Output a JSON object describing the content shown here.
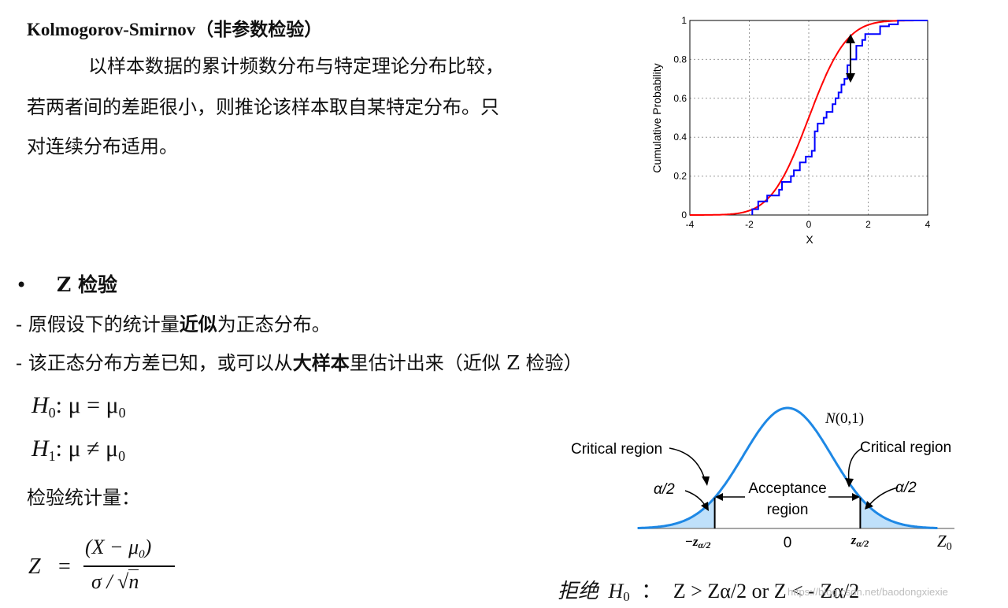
{
  "ks": {
    "title": "Kolmogorov-Smirnov（非参数检验）",
    "line1": "以样本数据的累计频数分布与特定理论分布比较，",
    "line2": "若两者间的差距很小，则推论该样本取自某特定分布。只",
    "line3": "对连续分布适用。"
  },
  "ks_chart": {
    "ylabel": "Cumulative Probability",
    "xlabel": "X",
    "x_ticks": [
      "-4",
      "-2",
      "0",
      "2",
      "4"
    ],
    "y_ticks": [
      "0",
      "0.2",
      "0.4",
      "0.6",
      "0.8",
      "1"
    ]
  },
  "chart_data": [
    {
      "type": "line",
      "title": "",
      "xlabel": "X",
      "ylabel": "Cumulative Probability",
      "xlim": [
        -4,
        4
      ],
      "ylim": [
        0,
        1
      ],
      "grid": true,
      "series": [
        {
          "name": "",
          "color": "#ff0000",
          "kind": "normal-cdf",
          "x": [
            -4,
            -3,
            -2.5,
            -2,
            -1.5,
            -1,
            -0.5,
            0,
            0.5,
            1,
            1.5,
            2,
            2.5,
            3,
            4
          ],
          "y": [
            0.0,
            0.001,
            0.006,
            0.023,
            0.067,
            0.159,
            0.309,
            0.5,
            0.691,
            0.841,
            0.933,
            0.977,
            0.994,
            0.999,
            1.0
          ]
        },
        {
          "name": "",
          "color": "#0000ff",
          "kind": "empirical-cdf-step",
          "x": [
            -1.9,
            -1.7,
            -1.4,
            -1.0,
            -0.9,
            -0.6,
            -0.5,
            -0.3,
            -0.1,
            0.1,
            0.2,
            0.3,
            0.5,
            0.6,
            0.8,
            0.9,
            1.0,
            1.1,
            1.2,
            1.3,
            1.4,
            1.6,
            1.8,
            1.9,
            2.4,
            2.7,
            3.0
          ],
          "y": [
            0.03,
            0.07,
            0.1,
            0.13,
            0.17,
            0.2,
            0.23,
            0.27,
            0.3,
            0.33,
            0.43,
            0.47,
            0.5,
            0.53,
            0.57,
            0.6,
            0.63,
            0.67,
            0.7,
            0.77,
            0.8,
            0.87,
            0.9,
            0.93,
            0.97,
            0.98,
            1.0
          ]
        }
      ]
    },
    {
      "type": "area",
      "title": "",
      "xlabel": "",
      "ylabel": "",
      "xlim": [
        -3.4,
        3.4
      ],
      "grid": false,
      "series": [
        {
          "name": "N(0,1)",
          "color": "#1e88e5",
          "kind": "normal-pdf"
        }
      ],
      "critical_value": 1.65
    }
  ],
  "z_section": {
    "bullet": "•",
    "title": "Z 检验",
    "item1_prefix": "- 原假设下的统计量",
    "item1_bold": "近似",
    "item1_suffix": "为正态分布。",
    "item2_prefix": "- 该正态分布方差已知，或可以从",
    "item2_bold": "大样本",
    "item2_suffix": "里估计出来（近似 Z 检验）",
    "h0": {
      "H": "H",
      "sub": "0",
      "rel": ": μ = μ",
      "sub2": "0"
    },
    "h1": {
      "H": "H",
      "sub": "1",
      "rel": ": μ ≠ μ",
      "sub2": "0"
    },
    "stat_label": "检验统计量：",
    "formula": {
      "lhs": "Z",
      "eq": "=",
      "num": "(X − μ",
      "num_sub": "0",
      "num_close": ")",
      "den": "σ / ",
      "den_sqrt": "n"
    }
  },
  "normal_figure": {
    "curve_label": "N(0,1)",
    "critical_left": "Critical region",
    "critical_right": "Critical region",
    "alpha_left": "α/2",
    "alpha_right": "α/2",
    "accept_line1": "Acceptance",
    "accept_line2": "region",
    "tick_left": "−z",
    "tick_left_sub": "α/2",
    "tick_center": "0",
    "tick_right": "z",
    "tick_right_sub": "α/2",
    "axis_label": "Z",
    "axis_label_sub": "0"
  },
  "rejection": {
    "prefix": "拒绝",
    "h": "H",
    "h_sub": "0",
    "colon": "：",
    "rule": "Z > Zα/2 or Z < - Zα/2"
  },
  "watermark": "https://blog.csdn.net/baodongxiexie"
}
